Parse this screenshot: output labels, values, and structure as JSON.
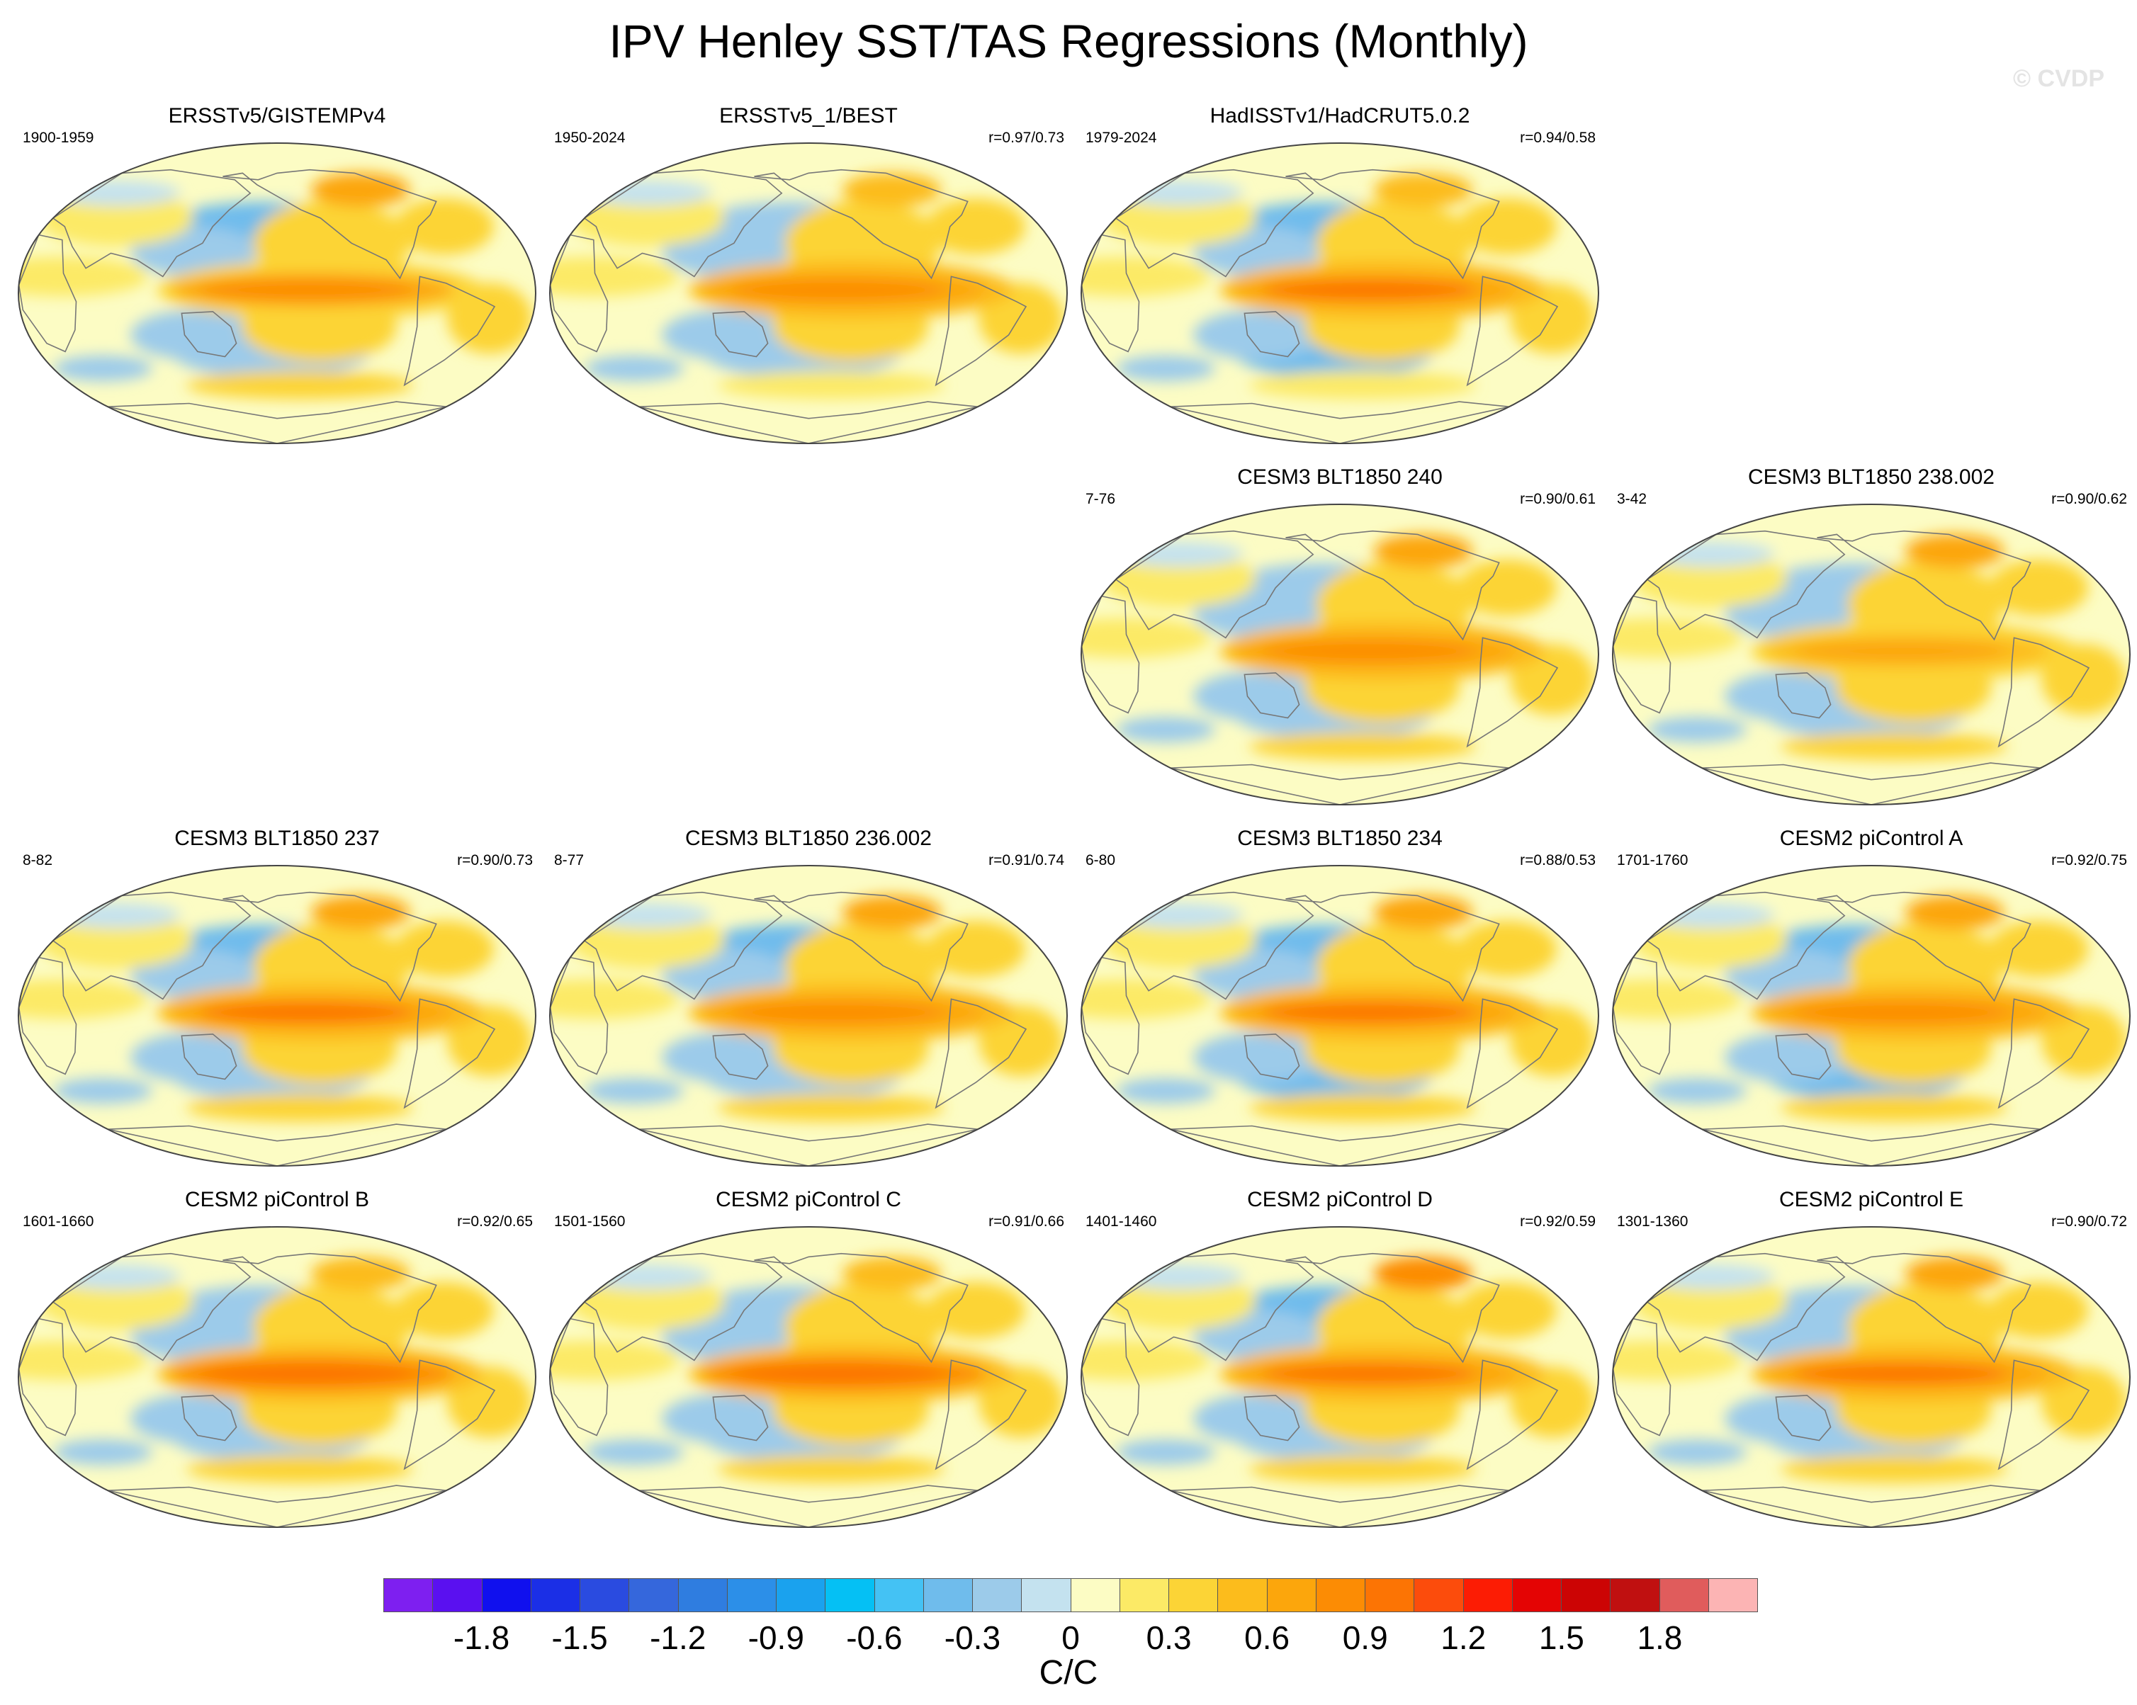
{
  "title": "IPV Henley SST/TAS Regressions (Monthly)",
  "watermark": "© CVDP",
  "colorbar": {
    "units": "C/C",
    "colors": [
      "#7e1ff0",
      "#5a10f0",
      "#1010ee",
      "#1b2fe6",
      "#2a4be0",
      "#3567dc",
      "#2f7de0",
      "#2c8fe8",
      "#1aa2ee",
      "#05c0f4",
      "#44c2f4",
      "#6fbcec",
      "#9ccbea",
      "#c4e2ef",
      "#fcfcc4",
      "#fcea66",
      "#fcd436",
      "#fcbc1c",
      "#fca60c",
      "#fc8c04",
      "#fc7404",
      "#fc4c0c",
      "#fc1c04",
      "#e40404",
      "#cc0404",
      "#c01010",
      "#e05c5c",
      "#fcb4b4"
    ],
    "ticks": [
      "-1.8",
      "-1.5",
      "-1.2",
      "-0.9",
      "-0.6",
      "-0.3",
      "0",
      "0.3",
      "0.6",
      "0.9",
      "1.2",
      "1.5",
      "1.8"
    ]
  },
  "panels": [
    {
      "title": "ERSSTv5/GISTEMPv4",
      "period": "1900-1959",
      "corr": "",
      "pattern": {
        "nino": 0.78,
        "kuro": 0.32,
        "alaska": 0.62,
        "subtrop": 0.04,
        "south": 0.3
      }
    },
    {
      "title": "ERSSTv5_1/BEST",
      "period": "1950-2024",
      "corr": "r=0.97/0.73",
      "pattern": {
        "nino": 0.85,
        "kuro": 0.28,
        "alaska": 0.52,
        "subtrop": 0.06,
        "south": 0.28
      }
    },
    {
      "title": "HadISSTv1/HadCRUT5.0.2",
      "period": "1979-2024",
      "corr": "r=0.94/0.58",
      "pattern": {
        "nino": 0.92,
        "kuro": 0.35,
        "alaska": 0.45,
        "subtrop": 0.12,
        "south": 0.22
      }
    },
    {
      "title": "CESM3 BLT1850 240",
      "period": "7-76",
      "corr": "r=0.90/0.61",
      "pattern": {
        "nino": 0.88,
        "kuro": 0.3,
        "alaska": 0.6,
        "subtrop": 0.08,
        "south": 0.35
      }
    },
    {
      "title": "CESM3 BLT1850 238.002",
      "period": "3-42",
      "corr": "r=0.90/0.62",
      "pattern": {
        "nino": 0.72,
        "kuro": 0.3,
        "alaska": 0.7,
        "subtrop": 0.07,
        "south": 0.3
      }
    },
    {
      "title": "CESM3 BLT1850 237",
      "period": "8-82",
      "corr": "r=0.90/0.73",
      "pattern": {
        "nino": 0.9,
        "kuro": 0.33,
        "alaska": 0.6,
        "subtrop": 0.1,
        "south": 0.35
      }
    },
    {
      "title": "CESM3 BLT1850 236.002",
      "period": "8-77",
      "corr": "r=0.91/0.74",
      "pattern": {
        "nino": 0.88,
        "kuro": 0.32,
        "alaska": 0.7,
        "subtrop": 0.1,
        "south": 0.32
      }
    },
    {
      "title": "CESM3 BLT1850 234",
      "period": "6-80",
      "corr": "r=0.88/0.53",
      "pattern": {
        "nino": 0.92,
        "kuro": 0.38,
        "alaska": 0.62,
        "subtrop": 0.1,
        "south": 0.32
      }
    },
    {
      "title": "CESM2 piControl A",
      "period": "1701-1760",
      "corr": "r=0.92/0.75",
      "pattern": {
        "nino": 0.85,
        "kuro": 0.35,
        "alaska": 0.65,
        "subtrop": 0.08,
        "south": 0.35
      }
    },
    {
      "title": "CESM2 piControl B",
      "period": "1601-1660",
      "corr": "r=0.92/0.65",
      "pattern": {
        "nino": 0.95,
        "kuro": 0.3,
        "alaska": 0.58,
        "subtrop": 0.08,
        "south": 0.32
      }
    },
    {
      "title": "CESM2 piControl C",
      "period": "1501-1560",
      "corr": "r=0.91/0.66",
      "pattern": {
        "nino": 0.95,
        "kuro": 0.3,
        "alaska": 0.55,
        "subtrop": 0.08,
        "south": 0.3
      }
    },
    {
      "title": "CESM2 piControl D",
      "period": "1401-1460",
      "corr": "r=0.92/0.59",
      "pattern": {
        "nino": 0.93,
        "kuro": 0.32,
        "alaska": 0.75,
        "subtrop": 0.08,
        "south": 0.3
      }
    },
    {
      "title": "CESM2 piControl E",
      "period": "1301-1360",
      "corr": "r=0.90/0.72",
      "pattern": {
        "nino": 0.9,
        "kuro": 0.3,
        "alaska": 0.62,
        "subtrop": 0.08,
        "south": 0.32
      }
    }
  ]
}
